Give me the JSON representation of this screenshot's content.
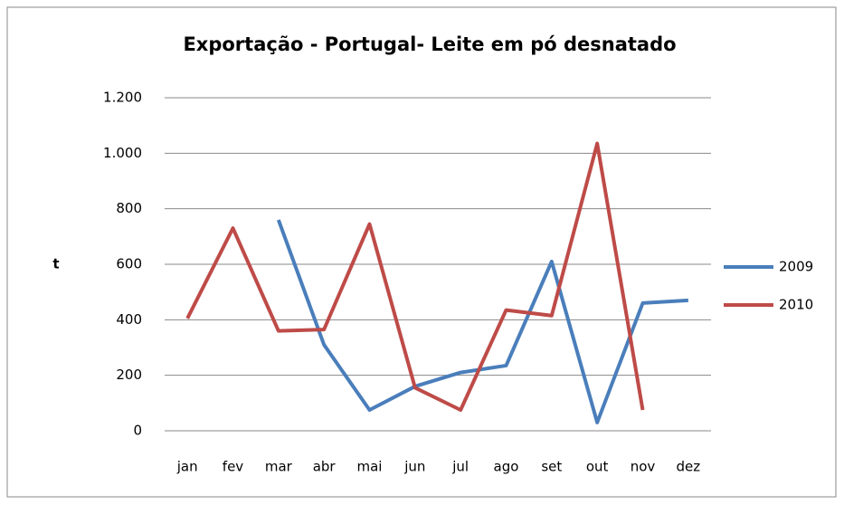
{
  "chart_data": {
    "type": "line",
    "title": "Exportação - Portugal- Leite em pó desnatado",
    "y_label": "t",
    "categories": [
      "jan",
      "fev",
      "mar",
      "abr",
      "mai",
      "jun",
      "jul",
      "ago",
      "set",
      "out",
      "nov",
      "dez"
    ],
    "series": [
      {
        "name": "2009",
        "color": "#4a7ebb",
        "values": [
          null,
          null,
          760,
          310,
          75,
          160,
          210,
          235,
          610,
          30,
          460,
          470
        ]
      },
      {
        "name": "2010",
        "color": "#be4b48",
        "values": [
          405,
          730,
          360,
          365,
          745,
          155,
          75,
          435,
          415,
          1035,
          75,
          null
        ]
      }
    ],
    "ylim": [
      0,
      1200
    ],
    "yticks": [
      0,
      200,
      400,
      600,
      800,
      {
        "value": 1000,
        "label": "1.000"
      },
      {
        "value": 1200,
        "label": "1.200"
      }
    ],
    "grid": true,
    "legend": "right"
  }
}
